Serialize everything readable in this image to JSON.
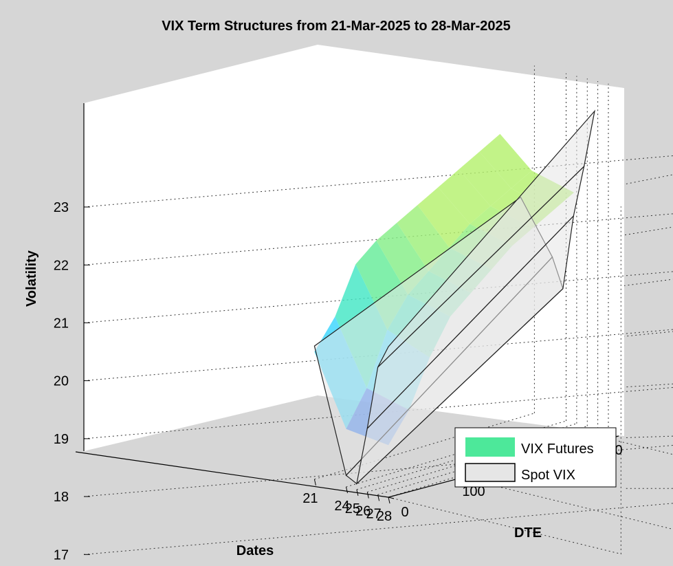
{
  "chart_data": {
    "type": "surface",
    "title": "VIX Term Structures from 21-Mar-2025 to 28-Mar-2025",
    "xlabel": "Dates",
    "ylabel": "DTE",
    "zlabel": "Volatility",
    "x_ticks": [
      "21",
      "24",
      "25",
      "26",
      "27",
      "28"
    ],
    "y_ticks": [
      "0",
      "100",
      "300"
    ],
    "z_ticks": [
      "17",
      "18",
      "19",
      "20",
      "21",
      "22",
      "23"
    ],
    "zlim": [
      17,
      23
    ],
    "ylim": [
      0,
      300
    ],
    "grid": true,
    "legend_position": "bottom-right",
    "legend": [
      {
        "name": "VIX Futures",
        "color": "#4de89a"
      },
      {
        "name": "Spot VIX",
        "color": "#e6e6e6"
      }
    ],
    "series": [
      {
        "name": "VIX Futures",
        "dates": [
          21,
          24,
          28
        ],
        "dte": [
          0,
          30,
          60,
          90,
          120,
          150,
          180,
          210,
          240,
          270
        ],
        "values": [
          [
            19.2,
            19.7,
            20.5,
            20.8,
            21.0,
            21.2,
            21.4,
            21.6,
            21.8,
            22.0
          ],
          [
            18.0,
            18.6,
            19.5,
            20.0,
            20.3,
            20.6,
            20.9,
            21.1,
            21.3,
            21.5
          ],
          [
            17.9,
            18.4,
            19.2,
            19.8,
            20.1,
            20.4,
            20.7,
            20.9,
            21.1,
            21.3
          ]
        ]
      },
      {
        "name": "Spot VIX",
        "dates": [
          21,
          24,
          25,
          26,
          27,
          28
        ],
        "dte": [
          0,
          300
        ],
        "values": [
          [
            19.3,
            20.8
          ],
          [
            17.2,
            19.9
          ],
          [
            17.1,
            19.4
          ],
          [
            18.1,
            20.7
          ],
          [
            19.2,
            21.6
          ],
          [
            19.6,
            22.6
          ]
        ]
      }
    ]
  }
}
